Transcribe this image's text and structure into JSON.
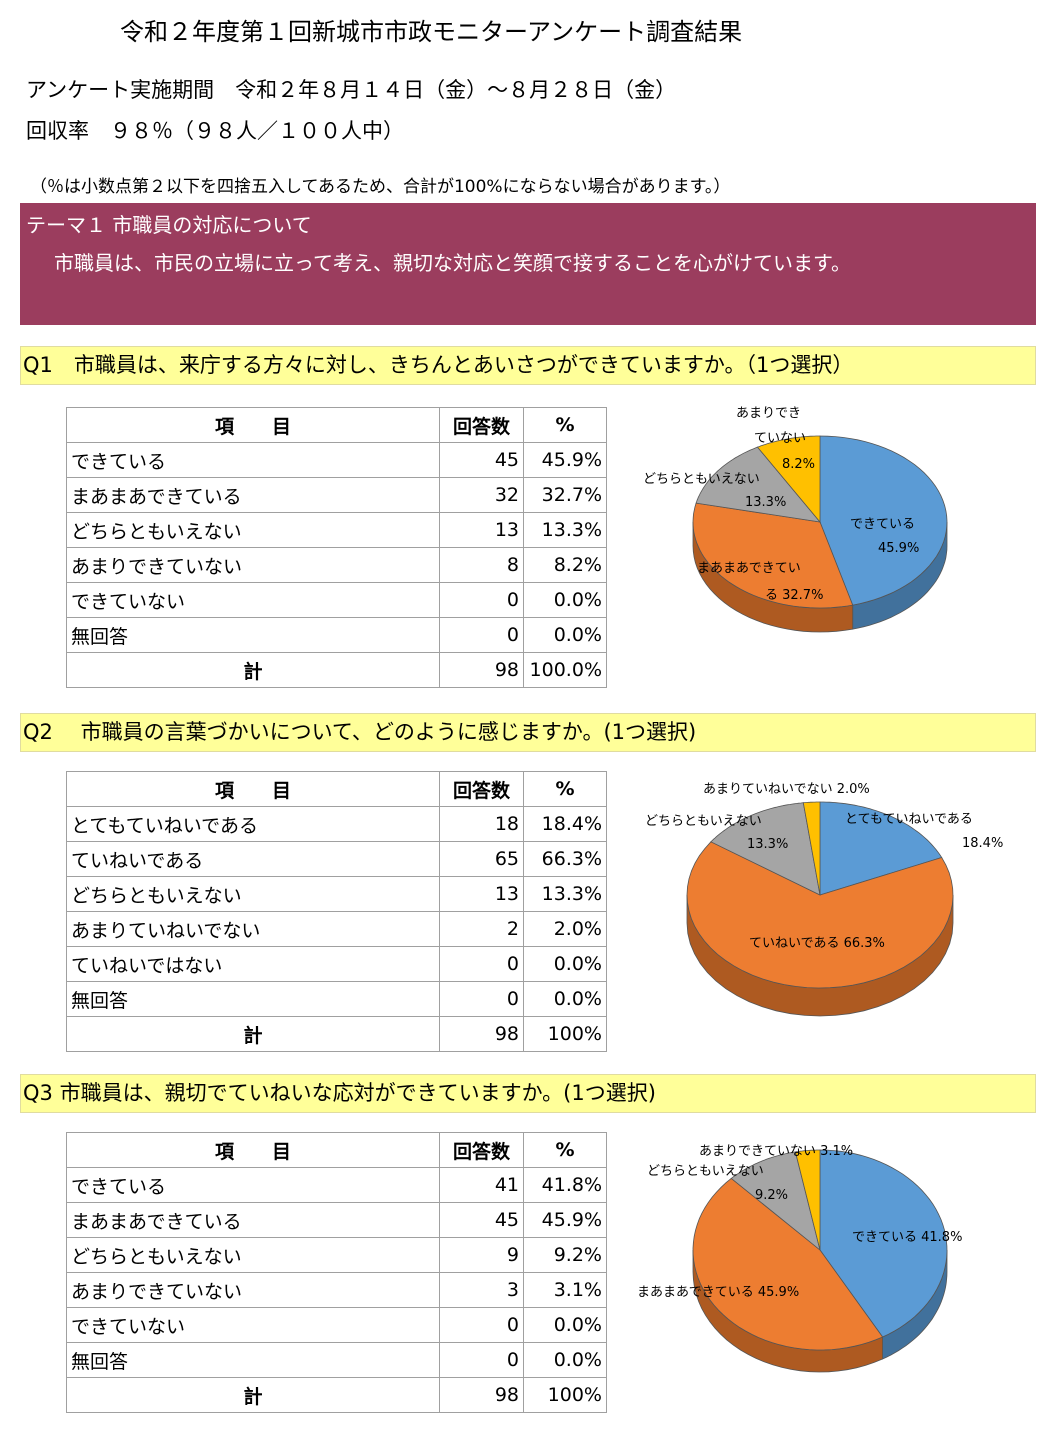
{
  "title": "令和２年度第１回新城市市政モニターアンケート調査結果",
  "info": {
    "period": "アンケート実施期間　令和２年８月１４日（金）～８月２８日（金）",
    "rate": "回収率　９８％（９８人／１００人中）"
  },
  "note": "（％は小数点第２以下を四捨五入してあるため、合計が100%にならない場合があります。）",
  "theme": {
    "title": "テーマ１ 市職員の対応について",
    "description": "市職員は、市民の立場に立って考え、親切な対応と笑顔で接することを心がけています。"
  },
  "table_headers": {
    "item": "項　　目",
    "count": "回答数",
    "pct": "%"
  },
  "colors": {
    "blue": "#5b9bd5",
    "orange": "#ed7d31",
    "gray": "#a5a5a5",
    "yellow": "#ffc000",
    "theme_bg": "#9b3d5e",
    "question_bg": "#ffff99"
  },
  "questions": [
    {
      "label": "Q1　市職員は、来庁する方々に対し、きちんとあいさつができていますか。（1つ選択）",
      "rows": [
        {
          "item": "できている",
          "count": "45",
          "pct": "45.9%"
        },
        {
          "item": "まあまあできている",
          "count": "32",
          "pct": "32.7%"
        },
        {
          "item": "どちらともいえない",
          "count": "13",
          "pct": "13.3%"
        },
        {
          "item": "あまりできていない",
          "count": "8",
          "pct": "8.2%"
        },
        {
          "item": "できていない",
          "count": "0",
          "pct": "0.0%"
        },
        {
          "item": "無回答",
          "count": "0",
          "pct": "0.0%"
        }
      ],
      "total": {
        "item": "計",
        "count": "98",
        "pct": "100.0%"
      },
      "pie_labels": {
        "s0": "できている",
        "s0v": "45.9%",
        "s1a": "まあまあできてい",
        "s1b": "る 32.7%",
        "s2": "どちらともいえない",
        "s2v": "13.3%",
        "s3a": "あまりでき",
        "s3b": "ていない",
        "s3v": "8.2%"
      }
    },
    {
      "label": "Q2　 市職員の言葉づかいについて、どのように感じますか。(1つ選択)",
      "rows": [
        {
          "item": "とてもていねいである",
          "count": "18",
          "pct": "18.4%"
        },
        {
          "item": "ていねいである",
          "count": "65",
          "pct": "66.3%"
        },
        {
          "item": "どちらともいえない",
          "count": "13",
          "pct": "13.3%"
        },
        {
          "item": "あまりていねいでない",
          "count": "2",
          "pct": "2.0%"
        },
        {
          "item": "ていねいではない",
          "count": "0",
          "pct": "0.0%"
        },
        {
          "item": "無回答",
          "count": "0",
          "pct": "0.0%"
        }
      ],
      "total": {
        "item": "計",
        "count": "98",
        "pct": "100%"
      },
      "pie_labels": {
        "s0": "とてもていねいである",
        "s0v": "18.4%",
        "s1": "ていねいである 66.3%",
        "s2": "どちらともいえない",
        "s2v": "13.3%",
        "s3": "あまりていねいでない 2.0%"
      }
    },
    {
      "label": "Q3 市職員は、親切でていねいな応対ができていますか。(1つ選択)",
      "rows": [
        {
          "item": "できている",
          "count": "41",
          "pct": "41.8%"
        },
        {
          "item": "まあまあできている",
          "count": "45",
          "pct": "45.9%"
        },
        {
          "item": "どちらともいえない",
          "count": "9",
          "pct": "9.2%"
        },
        {
          "item": "あまりできていない",
          "count": "3",
          "pct": "3.1%"
        },
        {
          "item": "できていない",
          "count": "0",
          "pct": "0.0%"
        },
        {
          "item": "無回答",
          "count": "0",
          "pct": "0.0%"
        }
      ],
      "total": {
        "item": "計",
        "count": "98",
        "pct": "100%"
      },
      "pie_labels": {
        "s0": "できている 41.8%",
        "s1": "まあまあできている 45.9%",
        "s2": "どちらともいえない",
        "s2v": "9.2%",
        "s3": "あまりできていない 3.1%"
      }
    }
  ],
  "chart_data": [
    {
      "type": "pie",
      "categories": [
        "できている",
        "まあまあできている",
        "どちらともいえない",
        "あまりできていない"
      ],
      "values": [
        45.9,
        32.7,
        13.3,
        8.2
      ]
    },
    {
      "type": "pie",
      "categories": [
        "とてもていねいである",
        "ていねいである",
        "どちらともいえない",
        "あまりていねいでない"
      ],
      "values": [
        18.4,
        66.3,
        13.3,
        2.0
      ]
    },
    {
      "type": "pie",
      "categories": [
        "できている",
        "まあまあできている",
        "どちらともいえない",
        "あまりできていない"
      ],
      "values": [
        41.8,
        45.9,
        9.2,
        3.1
      ]
    }
  ]
}
